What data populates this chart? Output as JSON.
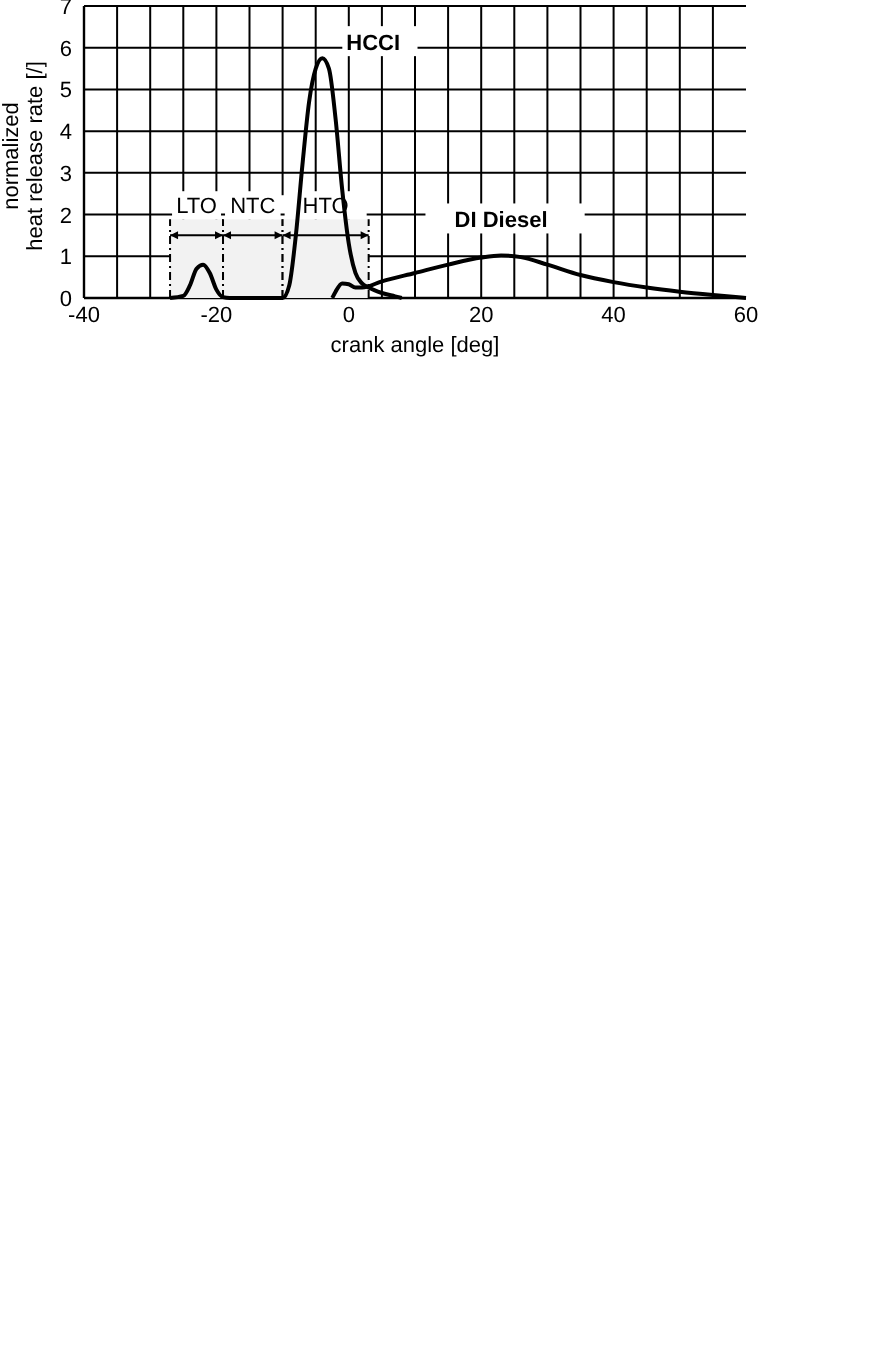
{
  "chart_data": {
    "type": "line",
    "xlabel": "crank angle [deg]",
    "ylabel": "normalized\nheat release rate [/]",
    "xlim": [
      -40,
      60
    ],
    "xticks": [
      -40,
      -20,
      0,
      20,
      40,
      60
    ],
    "ylim": [
      0,
      7
    ],
    "yticks": [
      0,
      1,
      2,
      3,
      4,
      5,
      6,
      7
    ],
    "grid": true,
    "marker": "none",
    "line_style": "solid",
    "series": [
      {
        "name": "HCCI",
        "color": "#000000",
        "x": [
          -27,
          -25,
          -24,
          -23,
          -22,
          -21,
          -20,
          -19,
          -18,
          -10,
          -9,
          -8,
          -7,
          -6,
          -5,
          -4,
          -3,
          -2,
          -1,
          0,
          1,
          2,
          3,
          5,
          7,
          8
        ],
        "values": [
          0,
          0.05,
          0.3,
          0.7,
          0.8,
          0.6,
          0.2,
          0.02,
          0,
          0,
          0.3,
          1.5,
          3.2,
          4.7,
          5.5,
          5.75,
          5.5,
          4.3,
          2.6,
          1.3,
          0.6,
          0.35,
          0.25,
          0.12,
          0.04,
          0
        ]
      },
      {
        "name": "DI Diesel",
        "color": "#000000",
        "x": [
          -2.5,
          -2,
          -1,
          0,
          1,
          2,
          5,
          10,
          15,
          20,
          23,
          26,
          30,
          35,
          40,
          45,
          50,
          55,
          60
        ],
        "values": [
          0,
          0.15,
          0.35,
          0.33,
          0.25,
          0.25,
          0.4,
          0.6,
          0.8,
          0.97,
          1.02,
          0.98,
          0.8,
          0.55,
          0.38,
          0.25,
          0.15,
          0.07,
          0
        ]
      }
    ],
    "bands": [
      {
        "axis": "x",
        "from": -27,
        "to": -19,
        "label": "LTO"
      },
      {
        "axis": "x",
        "from": -19,
        "to": -10,
        "label": "NTC"
      },
      {
        "axis": "x",
        "from": -10,
        "to": 3,
        "label": "HTO"
      }
    ]
  }
}
